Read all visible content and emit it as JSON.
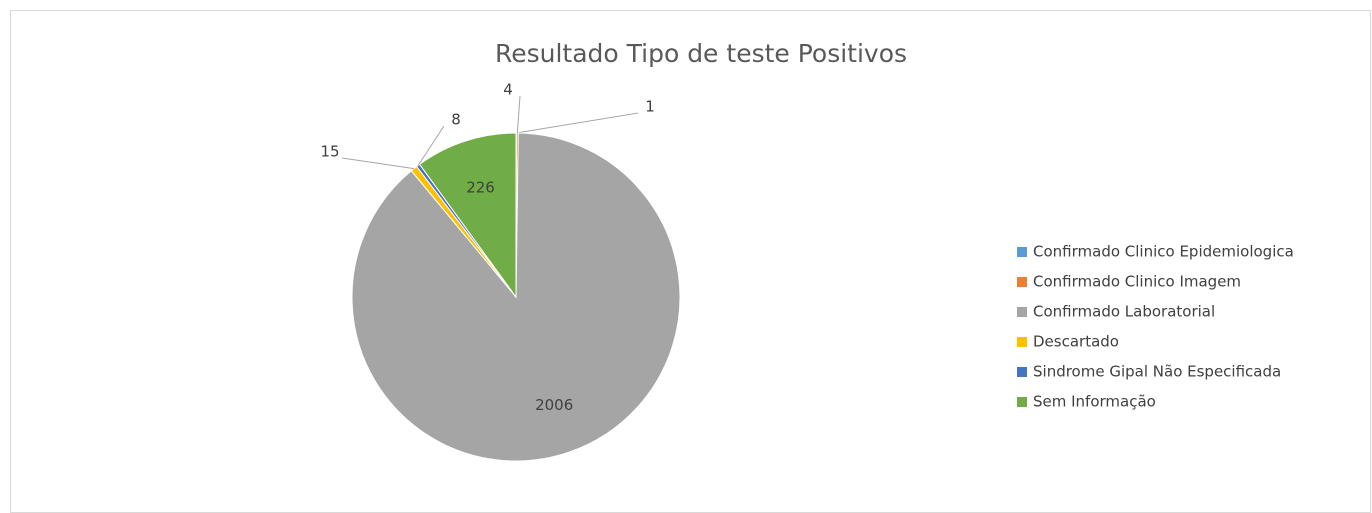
{
  "chart_data": {
    "type": "pie",
    "title": "Resultado Tipo de teste Positivos",
    "categories": [
      "Confirmado Clinico Epidemiologica",
      "Confirmado Clinico Imagem",
      "Confirmado Laboratorial",
      "Descartado",
      "Sindrome Gipal Não Especificada",
      "Sem Informação"
    ],
    "values": [
      1,
      4,
      2006,
      15,
      8,
      226
    ],
    "colors": [
      "#5b9bd5",
      "#ed7d31",
      "#a5a5a5",
      "#ffc000",
      "#4472c4",
      "#70ad47"
    ],
    "legend": "right"
  }
}
